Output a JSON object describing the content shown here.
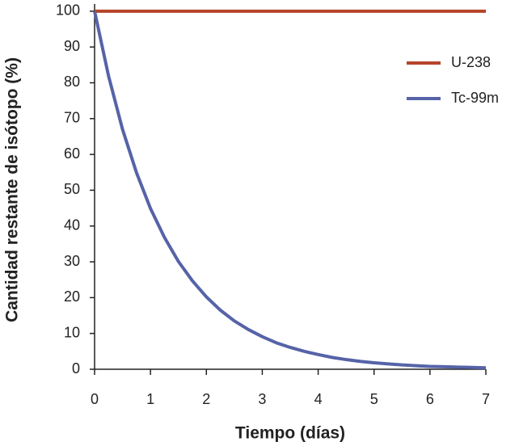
{
  "chart_data": {
    "type": "line",
    "x_label": "Tiempo (días)",
    "y_label": "Cantidad restante de isótopo (%)",
    "x": [
      0,
      0.25,
      0.5,
      0.75,
      1,
      1.25,
      1.5,
      1.75,
      2,
      2.25,
      2.5,
      2.75,
      3,
      3.25,
      3.5,
      3.75,
      4,
      4.25,
      4.5,
      4.75,
      5,
      5.25,
      5.5,
      5.75,
      6,
      6.25,
      6.5,
      6.75,
      7
    ],
    "series": [
      {
        "name": "U-238",
        "color": "#b5442a",
        "values": [
          100,
          100,
          100,
          100,
          100,
          100,
          100,
          100,
          100,
          100,
          100,
          100,
          100,
          100,
          100,
          100,
          100,
          100,
          100,
          100,
          100,
          100,
          100,
          100,
          100,
          100,
          100,
          100,
          100
        ]
      },
      {
        "name": "Tc-99m",
        "color": "#5663a8",
        "values": [
          100,
          81.9,
          67.0,
          54.9,
          44.9,
          36.8,
          30.1,
          24.7,
          20.2,
          16.5,
          13.5,
          11.1,
          9.1,
          7.4,
          6.1,
          5.0,
          4.1,
          3.3,
          2.7,
          2.2,
          1.8,
          1.5,
          1.2,
          1.0,
          0.8,
          0.7,
          0.6,
          0.5,
          0.4
        ]
      }
    ],
    "xlim": [
      0,
      7
    ],
    "xticks": [
      0,
      1,
      2,
      3,
      4,
      5,
      6,
      7
    ],
    "ylim": [
      0,
      102
    ],
    "yticks": [
      0,
      10,
      20,
      30,
      40,
      50,
      60,
      70,
      80,
      90,
      100
    ],
    "grid": false,
    "legend": "upper right"
  }
}
